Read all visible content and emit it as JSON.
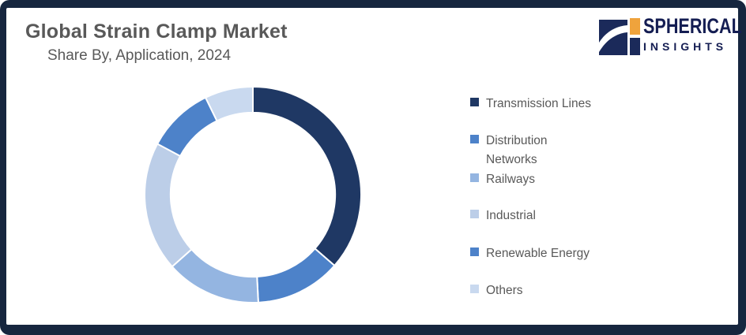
{
  "frame": {
    "border_color": "#16263F",
    "background": "#FFFFFF"
  },
  "header": {
    "title": "Global Strain Clamp Market",
    "subtitle": "Share By, Application, 2024",
    "text_color": "#595959"
  },
  "logo": {
    "line1": "SPHERICAL",
    "line2": "INSIGHTS",
    "text_color": "#141D52",
    "mark_navy": "#1B2A5A",
    "mark_orange": "#EFA33C"
  },
  "chart_data": {
    "type": "pie",
    "variant": "donut",
    "title": "Global Strain Clamp Market Share By, Application, 2024",
    "categories": [
      "Transmission Lines",
      "Distribution Networks",
      "Railways",
      "Industrial",
      "Renewable Energy",
      "Others"
    ],
    "values_percent_estimated": [
      36.4,
      12.8,
      14.2,
      19.4,
      10.0,
      7.2
    ],
    "colors": [
      "#1F3864",
      "#4D82C9",
      "#94B5E1",
      "#BCCEE8",
      "#4D82C9",
      "#C9D9EF"
    ],
    "start_angle_deg": 0,
    "direction": "clockwise",
    "inner_radius_ratio": 0.76,
    "segment_gap_color": "#FFFFFF",
    "legend_position": "right",
    "data_labels": false
  },
  "legend": {
    "text_color": "#595959",
    "items": [
      {
        "label": "Transmission Lines",
        "color": "#1F3864"
      },
      {
        "label": "Distribution Networks",
        "color": "#4D82C9"
      },
      {
        "label": "Railways",
        "color": "#94B5E1"
      },
      {
        "label": "Industrial",
        "color": "#BCCEE8"
      },
      {
        "label": "Renewable Energy",
        "color": "#4D82C9"
      },
      {
        "label": "Others",
        "color": "#C9D9EF"
      }
    ]
  }
}
